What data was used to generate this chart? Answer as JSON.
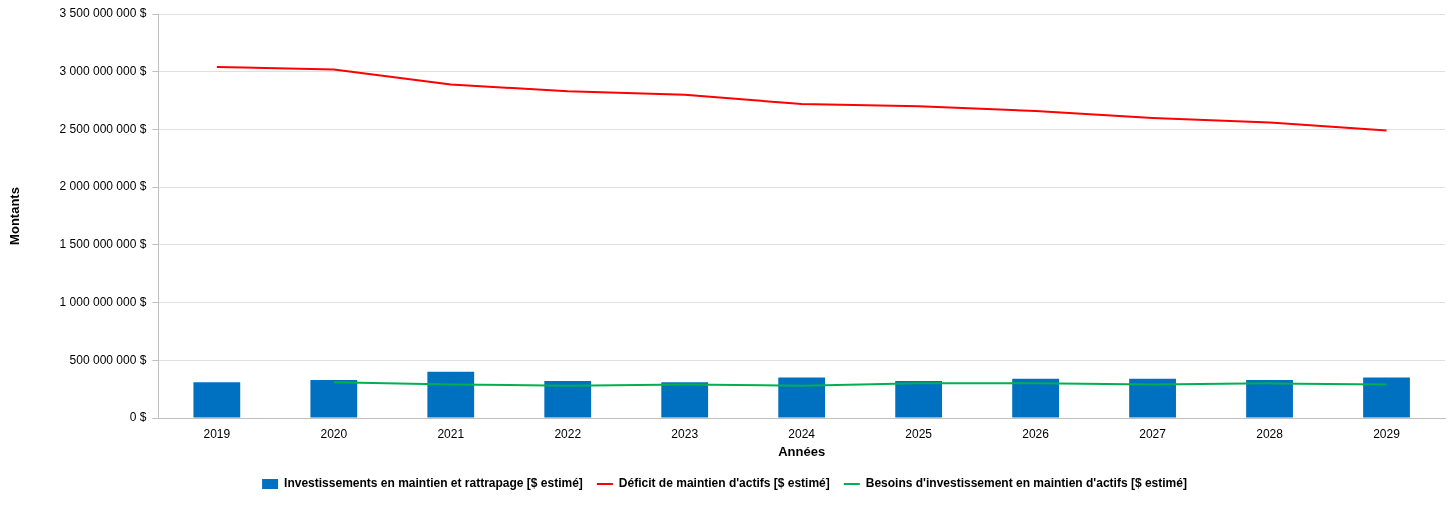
{
  "chart_data": {
    "type": "bar",
    "xlabel": "Années",
    "ylabel": "Montants",
    "categories": [
      "2019",
      "2020",
      "2021",
      "2022",
      "2023",
      "2024",
      "2025",
      "2026",
      "2027",
      "2028",
      "2029"
    ],
    "series": [
      {
        "name": "Investissements en maintien et rattrapage [$ estimé]",
        "color": "#0070c0",
        "values": [
          310000000,
          330000000,
          400000000,
          320000000,
          310000000,
          350000000,
          320000000,
          340000000,
          340000000,
          330000000,
          350000000
        ]
      },
      {
        "name": "Déficit de maintien d'actifs [$ estimé]",
        "type": "line",
        "color": "#ff0000",
        "values": [
          3040000000,
          3020000000,
          2890000000,
          2830000000,
          2800000000,
          2720000000,
          2700000000,
          2660000000,
          2600000000,
          2560000000,
          2490000000
        ]
      },
      {
        "name": "Besoins d'investissement en maintien d'actifs [$ estimé]",
        "type": "line",
        "color": "#00b050",
        "values": [
          null,
          310000000,
          290000000,
          280000000,
          290000000,
          280000000,
          300000000,
          300000000,
          290000000,
          300000000,
          290000000
        ]
      }
    ],
    "ylim": [
      0,
      3500000000
    ],
    "yticks": [
      {
        "value": 0,
        "label": "0 $"
      },
      {
        "value": 500000000,
        "label": "500 000 000 $"
      },
      {
        "value": 1000000000,
        "label": "1 000 000 000 $"
      },
      {
        "value": 1500000000,
        "label": "1 500 000 000 $"
      },
      {
        "value": 2000000000,
        "label": "2 000 000 000 $"
      },
      {
        "value": 2500000000,
        "label": "2 500 000 000 $"
      },
      {
        "value": 3000000000,
        "label": "3 000 000 000 $"
      },
      {
        "value": 3500000000,
        "label": "3 500 000 000 $"
      }
    ],
    "grid": "y",
    "legend": "bottom",
    "marker": "none"
  }
}
